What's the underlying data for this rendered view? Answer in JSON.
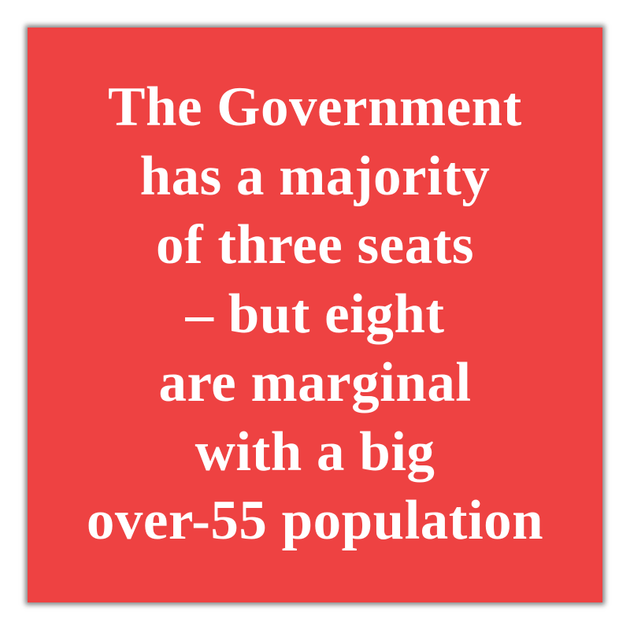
{
  "card": {
    "background_color": "#ee4242",
    "text_color": "#ffffff",
    "lines": [
      "The Government",
      "has a majority",
      "of three seats",
      "– but eight",
      "are marginal",
      "with a big",
      "over-55 population"
    ]
  }
}
